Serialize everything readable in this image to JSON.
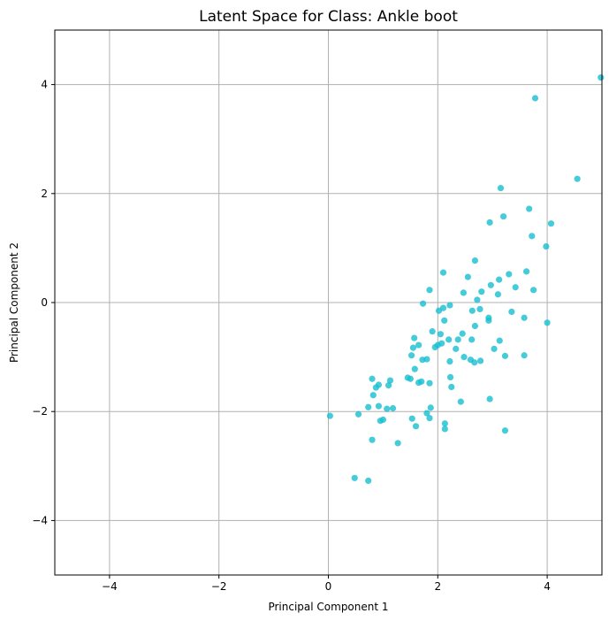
{
  "chart_data": {
    "type": "scatter",
    "title": "Latent Space for Class: Ankle boot",
    "xlabel": "Principal Component 1",
    "ylabel": "Principal Component 2",
    "xlim": [
      -5,
      5
    ],
    "ylim": [
      -5,
      5
    ],
    "xticks": [
      -4,
      -2,
      0,
      2,
      4
    ],
    "yticks": [
      -4,
      -2,
      0,
      2,
      4
    ],
    "xtick_labels": [
      "−4",
      "−2",
      "0",
      "2",
      "4"
    ],
    "ytick_labels": [
      "−4",
      "−2",
      "0",
      "2",
      "4"
    ],
    "grid": true,
    "point_color": "#17becf",
    "series": [
      {
        "points": [
          [
            0.03,
            -2.08
          ],
          [
            0.55,
            -2.05
          ],
          [
            0.48,
            -3.22
          ],
          [
            0.73,
            -3.27
          ],
          [
            0.8,
            -2.52
          ],
          [
            0.73,
            -1.92
          ],
          [
            0.8,
            -1.4
          ],
          [
            0.82,
            -1.7
          ],
          [
            0.87,
            -1.56
          ],
          [
            0.92,
            -1.51
          ],
          [
            0.92,
            -1.9
          ],
          [
            0.95,
            -2.17
          ],
          [
            1.0,
            -2.15
          ],
          [
            1.07,
            -1.95
          ],
          [
            1.1,
            -1.52
          ],
          [
            1.13,
            -1.43
          ],
          [
            1.18,
            -1.94
          ],
          [
            1.27,
            -2.58
          ],
          [
            1.45,
            -1.38
          ],
          [
            1.5,
            -1.4
          ],
          [
            1.52,
            -0.97
          ],
          [
            1.53,
            -2.13
          ],
          [
            1.55,
            -0.83
          ],
          [
            1.57,
            -0.65
          ],
          [
            1.58,
            -1.22
          ],
          [
            1.6,
            -2.27
          ],
          [
            1.65,
            -0.78
          ],
          [
            1.65,
            -1.47
          ],
          [
            1.7,
            -1.45
          ],
          [
            1.72,
            -1.05
          ],
          [
            1.73,
            -0.02
          ],
          [
            1.8,
            -1.04
          ],
          [
            1.8,
            -2.03
          ],
          [
            1.85,
            0.23
          ],
          [
            1.85,
            -2.12
          ],
          [
            1.85,
            -1.48
          ],
          [
            1.87,
            -1.93
          ],
          [
            1.9,
            -0.53
          ],
          [
            1.95,
            -0.82
          ],
          [
            2.0,
            -0.78
          ],
          [
            2.02,
            -0.15
          ],
          [
            2.05,
            -0.58
          ],
          [
            2.07,
            -0.75
          ],
          [
            2.1,
            -0.1
          ],
          [
            2.1,
            0.55
          ],
          [
            2.12,
            -0.33
          ],
          [
            2.13,
            -2.22
          ],
          [
            2.13,
            -2.32
          ],
          [
            2.2,
            -0.68
          ],
          [
            2.22,
            -1.08
          ],
          [
            2.22,
            -0.05
          ],
          [
            2.23,
            -1.37
          ],
          [
            2.25,
            -1.55
          ],
          [
            2.33,
            -0.85
          ],
          [
            2.37,
            -0.68
          ],
          [
            2.42,
            -1.82
          ],
          [
            2.45,
            -0.57
          ],
          [
            2.47,
            0.18
          ],
          [
            2.48,
            -1.0
          ],
          [
            2.55,
            0.47
          ],
          [
            2.6,
            -1.05
          ],
          [
            2.62,
            -0.68
          ],
          [
            2.63,
            -0.15
          ],
          [
            2.67,
            -1.1
          ],
          [
            2.68,
            -0.43
          ],
          [
            2.68,
            0.77
          ],
          [
            2.72,
            0.05
          ],
          [
            2.77,
            -0.12
          ],
          [
            2.78,
            -1.07
          ],
          [
            2.8,
            0.2
          ],
          [
            2.93,
            -0.28
          ],
          [
            2.93,
            -0.33
          ],
          [
            2.95,
            1.47
          ],
          [
            2.95,
            -1.77
          ],
          [
            2.97,
            0.32
          ],
          [
            3.03,
            -0.85
          ],
          [
            3.1,
            0.15
          ],
          [
            3.12,
            0.42
          ],
          [
            3.13,
            -0.7
          ],
          [
            3.15,
            2.1
          ],
          [
            3.2,
            1.58
          ],
          [
            3.23,
            -0.98
          ],
          [
            3.23,
            -2.35
          ],
          [
            3.3,
            0.52
          ],
          [
            3.35,
            -0.17
          ],
          [
            3.42,
            0.28
          ],
          [
            3.58,
            -0.28
          ],
          [
            3.58,
            -0.97
          ],
          [
            3.62,
            0.57
          ],
          [
            3.67,
            1.72
          ],
          [
            3.72,
            1.22
          ],
          [
            3.75,
            0.23
          ],
          [
            3.78,
            3.75
          ],
          [
            3.98,
            1.03
          ],
          [
            4.0,
            -0.37
          ],
          [
            4.07,
            1.45
          ],
          [
            4.55,
            2.27
          ],
          [
            4.98,
            4.13
          ]
        ]
      }
    ]
  }
}
